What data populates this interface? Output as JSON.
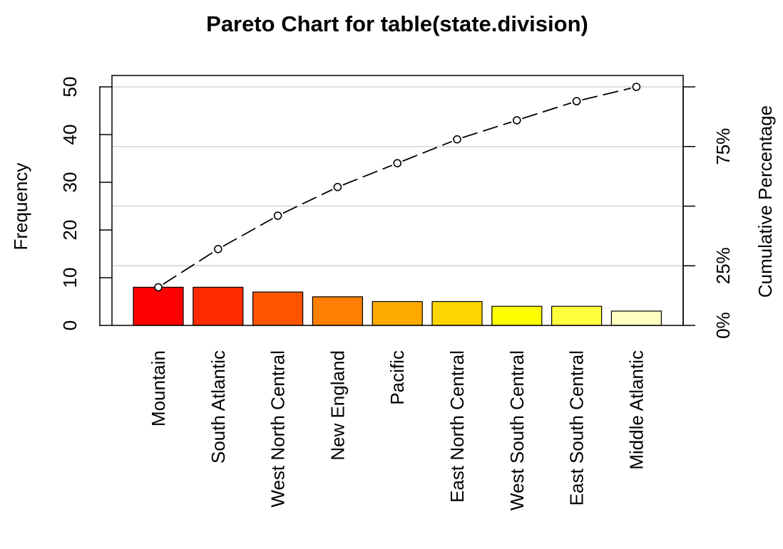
{
  "chart_data": {
    "type": "bar",
    "subtype": "pareto",
    "title": "Pareto Chart for table(state.division)",
    "ylabel": "Frequency",
    "y2label": "Cumulative Percentage",
    "categories": [
      "Mountain",
      "South Atlantic",
      "West North Central",
      "New England",
      "Pacific",
      "East North Central",
      "West South Central",
      "East South Central",
      "Middle Atlantic"
    ],
    "values": [
      8,
      8,
      7,
      6,
      5,
      5,
      4,
      4,
      3
    ],
    "cumulative_percent": [
      16,
      32,
      46,
      58,
      68,
      78,
      86,
      94,
      100
    ],
    "ylim": [
      0,
      50
    ],
    "yticks": [
      0,
      10,
      20,
      30,
      40,
      50
    ],
    "y2ticks": [
      "0%",
      "25%",
      "50%",
      "75%",
      "100%"
    ],
    "y2tick_labels_shown": [
      "0%",
      "25%",
      "75%"
    ],
    "grid": "horizontal at percentage ticks",
    "bar_colors": [
      "#FF0000",
      "#FF2A00",
      "#FF5500",
      "#FF8000",
      "#FFAA00",
      "#FFD500",
      "#FFFF00",
      "#FFFF40",
      "#FFFFBF"
    ],
    "colors": {
      "line": "#000000",
      "grid": "#d3d3d3",
      "bar_border": "#000000"
    }
  }
}
